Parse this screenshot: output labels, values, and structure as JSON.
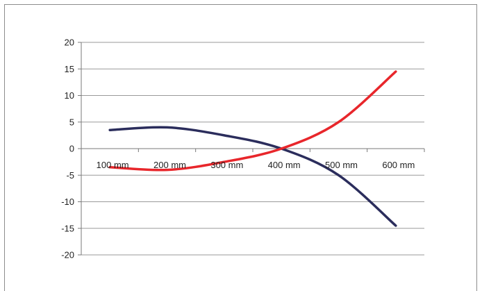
{
  "chart_data": {
    "type": "line",
    "title": "",
    "xlabel": "",
    "ylabel": "",
    "categories": [
      "100 mm",
      "200 mm",
      "300 mm",
      "400 mm",
      "500 mm",
      "600 mm"
    ],
    "ylim": [
      -20,
      20
    ],
    "yticks": [
      "20",
      "15",
      "10",
      "5",
      "0",
      "-5",
      "-10",
      "-15",
      "-20"
    ],
    "grid": true,
    "legend": "none",
    "series": [
      {
        "color": "#2b2d5c",
        "values": [
          3.5,
          4.0,
          2.5,
          0,
          -5,
          -14.5
        ]
      },
      {
        "color": "#e8262b",
        "values": [
          -3.5,
          -4.0,
          -2.5,
          0,
          5,
          14.5
        ]
      }
    ]
  }
}
